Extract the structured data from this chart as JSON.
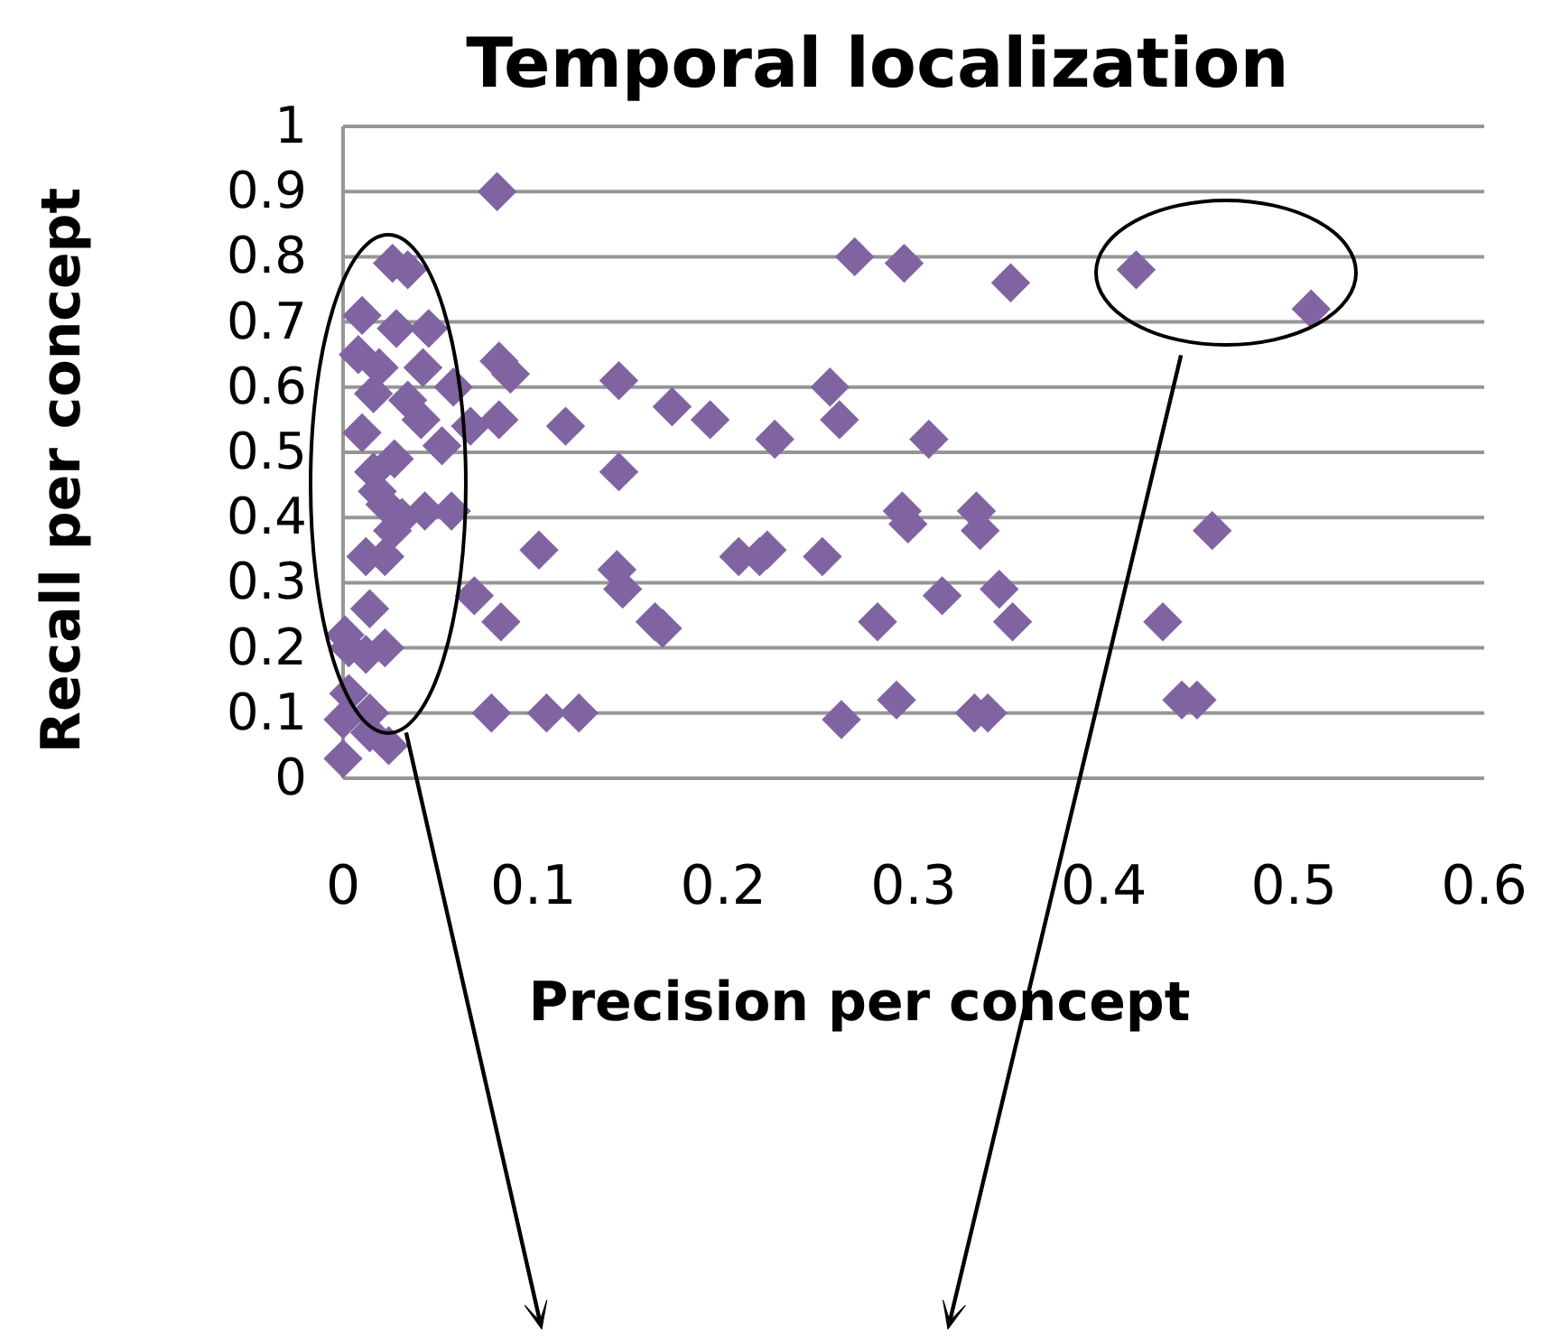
{
  "chart_data": {
    "type": "scatter",
    "title": "Temporal localization",
    "xlabel": "Precision per concept",
    "ylabel": "Recall per concept",
    "xlim": [
      0,
      0.6
    ],
    "xticks": [
      0,
      0.1,
      0.2,
      0.3,
      0.4,
      0.5,
      0.6
    ],
    "ylim": [
      0,
      1
    ],
    "yticks": [
      0,
      0.1,
      0.2,
      0.3,
      0.4,
      0.5,
      0.6,
      0.7,
      0.8,
      0.9,
      1
    ],
    "grid": "y",
    "marker": "diamond",
    "series": [
      {
        "color": "#8064a2",
        "x": [
          0.081,
          0.026,
          0.034,
          0.01,
          0.028,
          0.045,
          0.008,
          0.019,
          0.042,
          0.082,
          0.088,
          0.058,
          0.016,
          0.034,
          0.145,
          0.041,
          0.067,
          0.082,
          0.117,
          0.01,
          0.052,
          0.145,
          0.027,
          0.016,
          0.018,
          0.022,
          0.031,
          0.043,
          0.057,
          0.026,
          0.012,
          0.022,
          0.103,
          0.069,
          0.014,
          0.144,
          0.147,
          0.083,
          0.164,
          0.001,
          0.003,
          0.012,
          0.022,
          0.078,
          0.107,
          0.124,
          0.003,
          0.0,
          0.014,
          0.024,
          0.0,
          0.014,
          0.173,
          0.193,
          0.227,
          0.256,
          0.261,
          0.308,
          0.269,
          0.295,
          0.351,
          0.294,
          0.297,
          0.333,
          0.335,
          0.208,
          0.223,
          0.219,
          0.252,
          0.315,
          0.345,
          0.352,
          0.281,
          0.168,
          0.262,
          0.291,
          0.332,
          0.339,
          0.417,
          0.509,
          0.457,
          0.431,
          0.441,
          0.449
        ],
        "values": [
          0.9,
          0.79,
          0.78,
          0.71,
          0.69,
          0.69,
          0.65,
          0.63,
          0.63,
          0.64,
          0.62,
          0.6,
          0.59,
          0.58,
          0.61,
          0.55,
          0.54,
          0.55,
          0.54,
          0.53,
          0.51,
          0.47,
          0.49,
          0.47,
          0.44,
          0.42,
          0.4,
          0.41,
          0.41,
          0.38,
          0.34,
          0.34,
          0.35,
          0.28,
          0.26,
          0.32,
          0.29,
          0.24,
          0.24,
          0.22,
          0.2,
          0.19,
          0.2,
          0.1,
          0.1,
          0.1,
          0.13,
          0.09,
          0.07,
          0.05,
          0.03,
          0.1,
          0.57,
          0.55,
          0.52,
          0.6,
          0.55,
          0.52,
          0.8,
          0.79,
          0.76,
          0.41,
          0.39,
          0.41,
          0.38,
          0.34,
          0.35,
          0.34,
          0.34,
          0.28,
          0.29,
          0.24,
          0.24,
          0.23,
          0.09,
          0.12,
          0.1,
          0.1,
          0.78,
          0.72,
          0.38,
          0.24,
          0.12,
          0.12
        ]
      }
    ]
  }
}
